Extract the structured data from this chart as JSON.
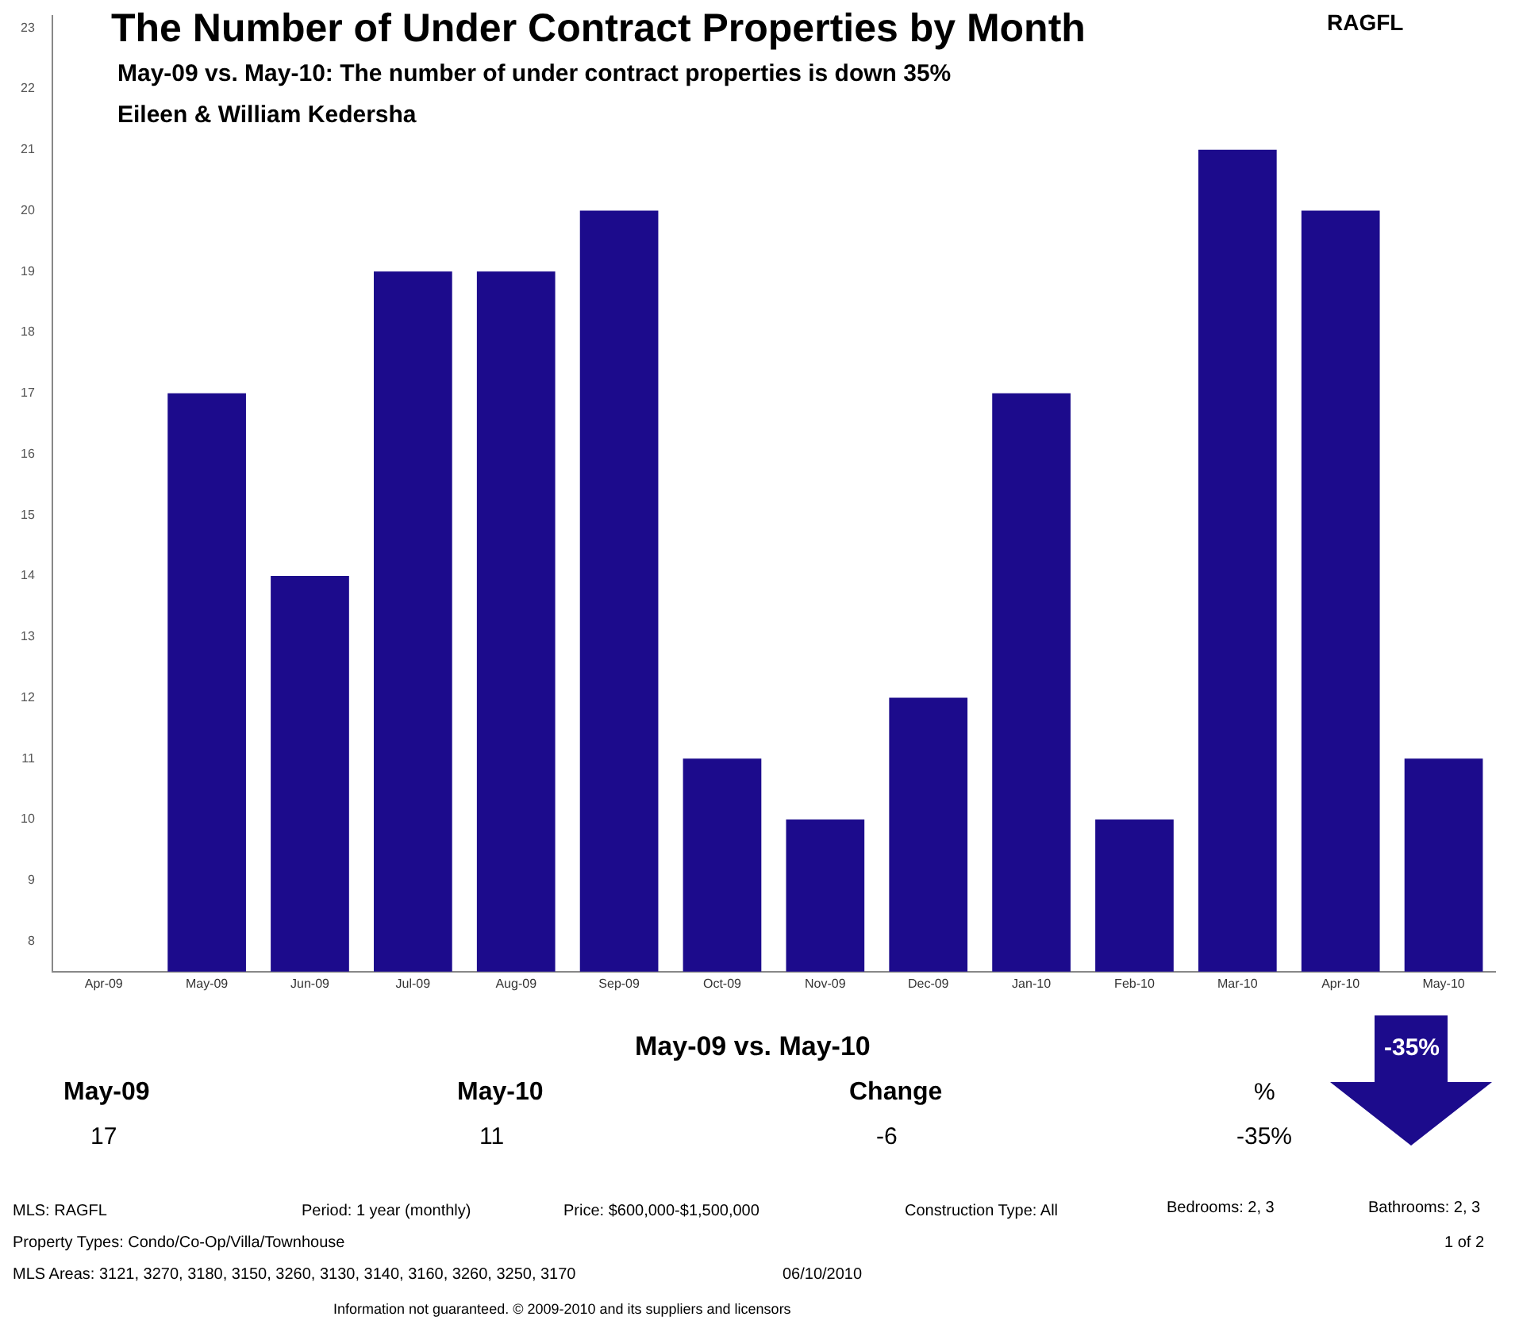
{
  "chart_data": {
    "type": "bar",
    "title": "The Number of Under Contract Properties by Month",
    "subtitle": "May-09 vs. May-10:  The number of under contract properties is down 35%",
    "categories": [
      "Apr-09",
      "May-09",
      "Jun-09",
      "Jul-09",
      "Aug-09",
      "Sep-09",
      "Oct-09",
      "Nov-09",
      "Dec-09",
      "Jan-10",
      "Feb-10",
      "Mar-10",
      "Apr-10",
      "May-10"
    ],
    "values": [
      null,
      17,
      14,
      19,
      19,
      20,
      11,
      10,
      12,
      17,
      10,
      21,
      20,
      11
    ],
    "color": "#1c0b8c",
    "ylim": [
      7.5,
      23.2
    ],
    "yticks": [
      8,
      9,
      10,
      11,
      12,
      13,
      14,
      15,
      16,
      17,
      18,
      19,
      20,
      21,
      22,
      23
    ],
    "grid": false,
    "legend": false,
    "annotations": [
      "Eileen & William Kedersha",
      "RAGFL",
      "May-09 vs. May-10",
      "May-09",
      "17",
      "May-10",
      "11",
      "Change",
      "-6",
      "%",
      "-35%",
      "-35%",
      "MLS: RAGFL",
      "Period: 1 year (monthly)",
      "Price: $600,000-$1,500,000",
      "Construction Type: All",
      "Bedrooms: 2, 3",
      "Bathrooms: 2, 3",
      "Property Types: Condo/Co-Op/Villa/Townhouse",
      "1 of 2",
      "MLS Areas: 3121, 3270, 3180, 3150, 3260, 3130, 3140, 3160, 3260, 3250, 3170",
      "06/10/2010",
      "Information not guaranteed. © 2009-2010 and its suppliers and licensors"
    ]
  }
}
